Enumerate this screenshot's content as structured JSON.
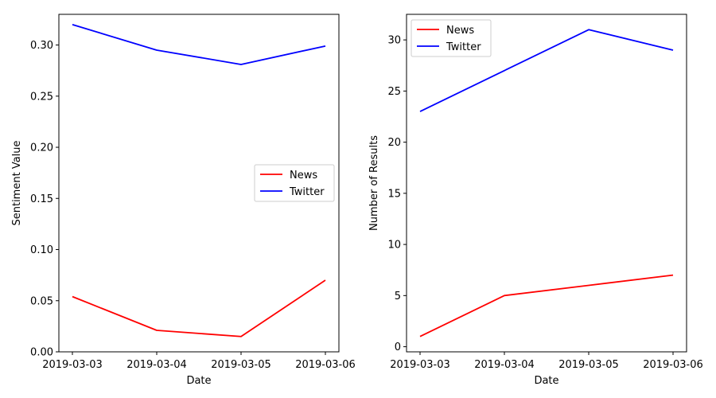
{
  "chart_data": [
    {
      "type": "line",
      "xlabel": "Date",
      "ylabel": "Sentiment Value",
      "x": [
        "2019-03-03",
        "2019-03-04",
        "2019-03-05",
        "2019-03-06"
      ],
      "xtick_labels": [
        "2019-03-03",
        "2019-03-04",
        "2019-03-05",
        "2019-03-06"
      ],
      "ylim": [
        0,
        0.33
      ],
      "yticks": [
        0.0,
        0.05,
        0.1,
        0.15,
        0.2,
        0.25,
        0.3
      ],
      "ytick_labels": [
        "0.00",
        "0.05",
        "0.10",
        "0.15",
        "0.20",
        "0.25",
        "0.30"
      ],
      "series": [
        {
          "name": "News",
          "color": "#ff0000",
          "values": [
            0.054,
            0.021,
            0.015,
            0.07
          ]
        },
        {
          "name": "Twitter",
          "color": "#0000ff",
          "values": [
            0.32,
            0.295,
            0.281,
            0.299
          ]
        }
      ],
      "legend_position": "center-right",
      "grid": false
    },
    {
      "type": "line",
      "xlabel": "Date",
      "ylabel": "Number of Results",
      "x": [
        "2019-03-03",
        "2019-03-04",
        "2019-03-05",
        "2019-03-06"
      ],
      "xtick_labels": [
        "2019-03-03",
        "2019-03-04",
        "2019-03-05",
        "2019-03-06"
      ],
      "ylim": [
        -0.5,
        32.5
      ],
      "yticks": [
        0,
        5,
        10,
        15,
        20,
        25,
        30
      ],
      "ytick_labels": [
        "0",
        "5",
        "10",
        "15",
        "20",
        "25",
        "30"
      ],
      "series": [
        {
          "name": "News",
          "color": "#ff0000",
          "values": [
            1,
            5,
            6,
            7
          ]
        },
        {
          "name": "Twitter",
          "color": "#0000ff",
          "values": [
            23,
            27,
            31,
            29
          ]
        }
      ],
      "legend_position": "top-left",
      "grid": false
    }
  ]
}
